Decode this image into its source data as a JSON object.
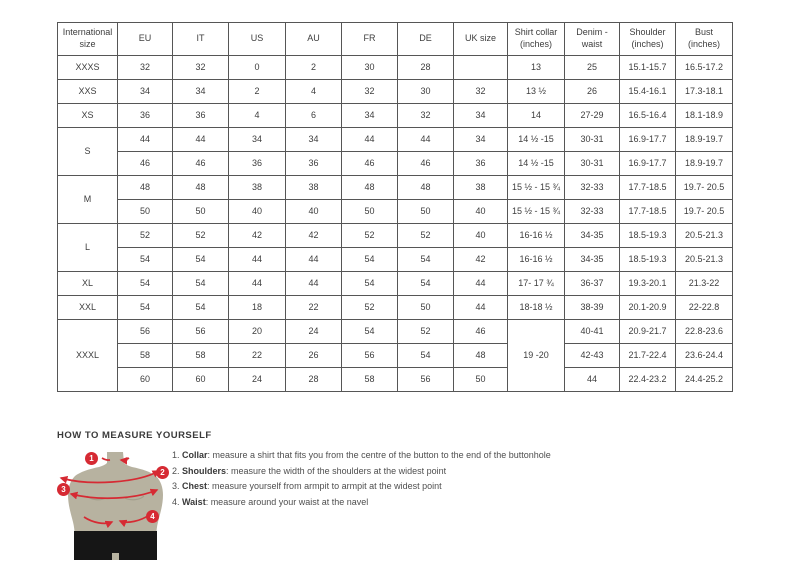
{
  "colors": {
    "accent_red": "#d62a33",
    "torso": "#b7b2a0",
    "torso_shade": "#a39e8b",
    "shorts": "#161616",
    "table_border": "#565656",
    "text": "#3d3d3d"
  },
  "size_table": {
    "columns": [
      "International size",
      "EU",
      "IT",
      "US",
      "AU",
      "FR",
      "DE",
      "UK size",
      "Shirt collar (inches)",
      "Denim - waist",
      "Shoulder (inches)",
      "Bust (inches)"
    ],
    "rows": [
      [
        {
          "t": "XXXS",
          "rs": 1
        },
        "32",
        "32",
        "0",
        "2",
        "30",
        "28",
        "",
        "13",
        "25",
        "15.1-15.7",
        "16.5-17.2"
      ],
      [
        {
          "t": "XXS",
          "rs": 1
        },
        "34",
        "34",
        "2",
        "4",
        "32",
        "30",
        "32",
        "13 ½",
        "26",
        "15.4-16.1",
        "17.3-18.1"
      ],
      [
        {
          "t": "XS",
          "rs": 1
        },
        "36",
        "36",
        "4",
        "6",
        "34",
        "32",
        "34",
        "14",
        "27-29",
        "16.5-16.4",
        "18.1-18.9"
      ],
      [
        {
          "t": "S",
          "rs": 2
        },
        "44",
        "44",
        "34",
        "34",
        "44",
        "44",
        "34",
        "14 ½ -15",
        "30-31",
        "16.9-17.7",
        "18.9-19.7"
      ],
      [
        null,
        "46",
        "46",
        "36",
        "36",
        "46",
        "46",
        "36",
        "14 ½ -15",
        "30-31",
        "16.9-17.7",
        "18.9-19.7"
      ],
      [
        {
          "t": "M",
          "rs": 2
        },
        "48",
        "48",
        "38",
        "38",
        "48",
        "48",
        "38",
        "15 ½ - 15 ¾",
        "32-33",
        "17.7-18.5",
        "19.7- 20.5"
      ],
      [
        null,
        "50",
        "50",
        "40",
        "40",
        "50",
        "50",
        "40",
        "15 ½ - 15 ¾",
        "32-33",
        "17.7-18.5",
        "19.7- 20.5"
      ],
      [
        {
          "t": "L",
          "rs": 2
        },
        "52",
        "52",
        "42",
        "42",
        "52",
        "52",
        "40",
        "16-16 ½",
        "34-35",
        "18.5-19.3",
        "20.5-21.3"
      ],
      [
        null,
        "54",
        "54",
        "44",
        "44",
        "54",
        "54",
        "42",
        "16-16 ½",
        "34-35",
        "18.5-19.3",
        "20.5-21.3"
      ],
      [
        {
          "t": "XL",
          "rs": 1
        },
        "54",
        "54",
        "44",
        "44",
        "54",
        "54",
        "44",
        "17- 17 ¾",
        "36-37",
        "19.3-20.1",
        "21.3-22"
      ],
      [
        {
          "t": "XXL",
          "rs": 1
        },
        "54",
        "54",
        "18",
        "22",
        "52",
        "50",
        "44",
        "18-18 ½",
        "38-39",
        "20.1-20.9",
        "22-22.8"
      ],
      [
        {
          "t": "XXXL",
          "rs": 3
        },
        "56",
        "56",
        "20",
        "24",
        "54",
        "52",
        "46",
        {
          "t": "19 -20",
          "rs": 3
        },
        "40-41",
        "20.9-21.7",
        "22.8-23.6"
      ],
      [
        null,
        "58",
        "58",
        "22",
        "26",
        "56",
        "54",
        "48",
        null,
        "42-43",
        "21.7-22.4",
        "23.6-24.4"
      ],
      [
        null,
        "60",
        "60",
        "24",
        "28",
        "58",
        "56",
        "50",
        null,
        "44",
        "22.4-23.2",
        "24.4-25.2"
      ]
    ]
  },
  "measure": {
    "heading": "HOW TO MEASURE YOURSELF",
    "badges": [
      "1",
      "2",
      "3",
      "4"
    ],
    "items": [
      {
        "num": "1.",
        "label": "Collar",
        "desc": ": measure a shirt that fits you from the centre of the button to the end of the buttonhole"
      },
      {
        "num": "2.",
        "label": "Shoulders",
        "desc": ": measure the width of the shoulders at the widest point"
      },
      {
        "num": "3.",
        "label": "Chest",
        "desc": ": measure yourself from armpit to armpit at the widest point"
      },
      {
        "num": "4.",
        "label": "Waist",
        "desc": ": measure around your waist at the navel"
      }
    ]
  }
}
